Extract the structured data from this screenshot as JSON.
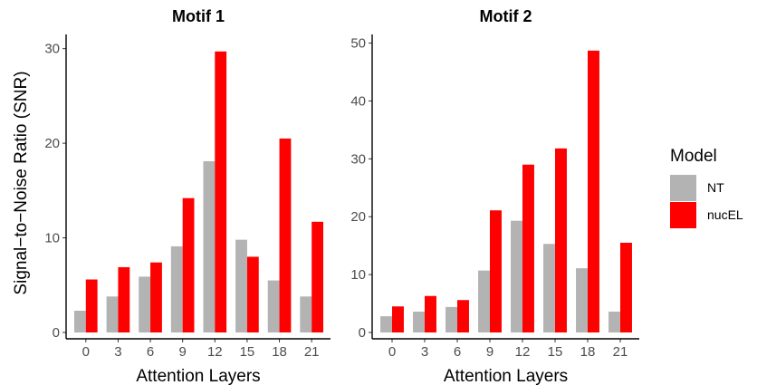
{
  "chart_data": [
    {
      "type": "bar",
      "title": "Motif 1",
      "xlabel": "Attention Layers",
      "ylabel": "Signal−to−Noise Ratio (SNR)",
      "categories": [
        "0",
        "3",
        "6",
        "9",
        "12",
        "15",
        "18",
        "21"
      ],
      "ylim": [
        0,
        31.5
      ],
      "yticks": [
        0,
        10,
        20,
        30
      ],
      "series": [
        {
          "name": "NT",
          "color": "#b3b3b3",
          "values": [
            2.3,
            3.8,
            5.9,
            9.1,
            18.1,
            9.8,
            5.5,
            3.8
          ]
        },
        {
          "name": "nucEL",
          "color": "#ff0000",
          "values": [
            5.6,
            6.9,
            7.4,
            14.2,
            29.7,
            8.0,
            20.5,
            11.7
          ]
        }
      ],
      "grid": false
    },
    {
      "type": "bar",
      "title": "Motif 2",
      "xlabel": "Attention Layers",
      "ylabel": "",
      "categories": [
        "0",
        "3",
        "6",
        "9",
        "12",
        "15",
        "18",
        "21"
      ],
      "ylim": [
        0,
        51.5
      ],
      "yticks": [
        0,
        10,
        20,
        30,
        40,
        50
      ],
      "series": [
        {
          "name": "NT",
          "color": "#b3b3b3",
          "values": [
            2.8,
            3.6,
            4.4,
            10.7,
            19.3,
            15.3,
            11.1,
            3.6
          ]
        },
        {
          "name": "nucEL",
          "color": "#ff0000",
          "values": [
            4.5,
            6.3,
            5.6,
            21.1,
            29.0,
            31.8,
            48.7,
            15.5
          ]
        }
      ],
      "grid": false
    }
  ],
  "legend": {
    "title": "Model",
    "position": "right",
    "items": [
      {
        "label": "NT",
        "color": "#b3b3b3"
      },
      {
        "label": "nucEL",
        "color": "#ff0000"
      }
    ]
  }
}
